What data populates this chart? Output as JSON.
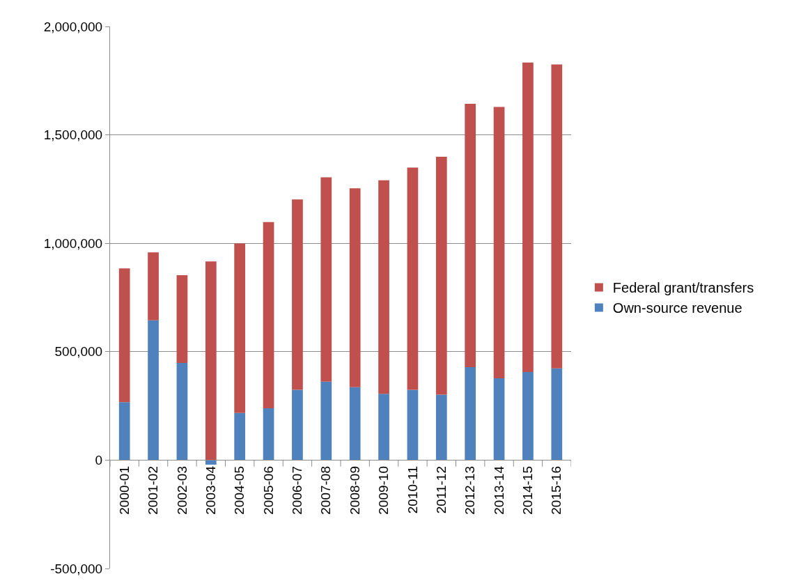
{
  "chart_data": {
    "type": "bar",
    "stacked": true,
    "categories": [
      "2000-01",
      "2001-02",
      "2002-03",
      "2003-04",
      "2004-05",
      "2005-06",
      "2006-07",
      "2007-08",
      "2008-09",
      "2009-10",
      "2010-11",
      "2011-12",
      "2012-13",
      "2013-14",
      "2014-15",
      "2015-16"
    ],
    "series": [
      {
        "name": "Own-source revenue",
        "color": "#4f81bd",
        "values": [
          267000,
          645000,
          448000,
          -21000,
          217000,
          239000,
          324000,
          362000,
          336000,
          306000,
          324000,
          302000,
          429000,
          377000,
          406000,
          423000
        ]
      },
      {
        "name": "Federal grant/transfers",
        "color": "#c0504d",
        "values": [
          617000,
          313000,
          405000,
          916000,
          782000,
          859000,
          878000,
          942000,
          918000,
          985000,
          1025000,
          1097000,
          1214000,
          1252000,
          1428000,
          1402000
        ]
      }
    ],
    "ylim": [
      -500000,
      2000000
    ],
    "yticks": [
      {
        "value": -500000,
        "label": "-500,000"
      },
      {
        "value": 0,
        "label": "0"
      },
      {
        "value": 500000,
        "label": "500,000"
      },
      {
        "value": 1000000,
        "label": "1,000,000"
      },
      {
        "value": 1500000,
        "label": "1,500,000"
      },
      {
        "value": 2000000,
        "label": "2,000,000"
      }
    ],
    "grid": "y",
    "legend": "right"
  }
}
